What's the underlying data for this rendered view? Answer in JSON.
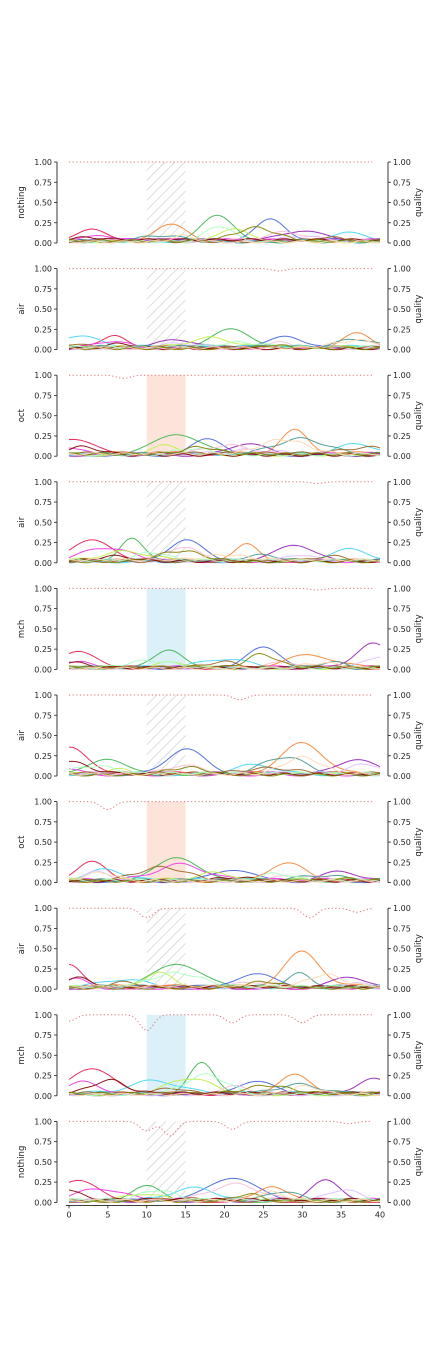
{
  "chart_data": {
    "type": "line",
    "description_kind": "stacked small-multiple line plots with shaded stimulus window and dotted quality trace",
    "x": {
      "ticks": [
        0,
        5,
        10,
        15,
        20,
        25,
        30,
        35,
        40
      ],
      "lim": [
        0,
        40
      ]
    },
    "y": {
      "ticks": [
        "0.00",
        "0.25",
        "0.50",
        "0.75",
        "1.00"
      ],
      "lim": [
        0,
        1
      ]
    },
    "right_axis": {
      "label": "quality",
      "ticks": [
        "0.00",
        "0.25",
        "0.50",
        "0.75",
        "1.00"
      ]
    },
    "stimulus_window": [
      10,
      15
    ],
    "window_styles": {
      "hatched": {
        "fill": "none",
        "hatch": "#c8c8c8"
      },
      "oct": {
        "fill": "#fde4da"
      },
      "mch": {
        "fill": "#dcf0fa"
      }
    },
    "quality_color": "#e07070",
    "series_colors": [
      "#e6194b",
      "#3cb44b",
      "#4363d8",
      "#f58231",
      "#911eb4",
      "#42d4f4",
      "#f032e6",
      "#bfef45",
      "#fabed4",
      "#469990",
      "#dcbeff",
      "#9a6324",
      "#800000",
      "#aaffc3",
      "#808000",
      "#ffd8b1",
      "#000075",
      "#e6c229",
      "#ff4d4d",
      "#2e8b57"
    ],
    "panels": [
      {
        "label": "nothing",
        "window": "hatched",
        "quality_dips": [],
        "peaks": [
          [
            3,
            0.12
          ],
          [
            19,
            0.3
          ],
          [
            26,
            0.25
          ],
          [
            13,
            0.2
          ],
          [
            30,
            0.12
          ],
          [
            36,
            0.1
          ]
        ]
      },
      {
        "label": "air",
        "window": "hatched",
        "quality_dips": [
          [
            27,
            0.03
          ]
        ],
        "peaks": [
          [
            6,
            0.15
          ],
          [
            21,
            0.22
          ],
          [
            28,
            0.15
          ],
          [
            37,
            0.18
          ],
          [
            14,
            0.1
          ],
          [
            1,
            0.13
          ]
        ]
      },
      {
        "label": "oct",
        "window": "oct",
        "quality_dips": [
          [
            7,
            0.04
          ]
        ],
        "peaks": [
          [
            0,
            0.18
          ],
          [
            14,
            0.25
          ],
          [
            18,
            0.2
          ],
          [
            29,
            0.28
          ],
          [
            23,
            0.15
          ],
          [
            37,
            0.12
          ]
        ]
      },
      {
        "label": "air",
        "window": "hatched",
        "quality_dips": [
          [
            32,
            0.02
          ]
        ],
        "peaks": [
          [
            3,
            0.25
          ],
          [
            8,
            0.28
          ],
          [
            15,
            0.25
          ],
          [
            23,
            0.2
          ],
          [
            29,
            0.2
          ],
          [
            36,
            0.15
          ]
        ]
      },
      {
        "label": "mch",
        "window": "mch",
        "quality_dips": [
          [
            32,
            0.02
          ]
        ],
        "peaks": [
          [
            1,
            0.2
          ],
          [
            13,
            0.22
          ],
          [
            25,
            0.25
          ],
          [
            31,
            0.15
          ],
          [
            39,
            0.3
          ],
          [
            20,
            0.1
          ]
        ]
      },
      {
        "label": "air",
        "window": "hatched",
        "quality_dips": [
          [
            22,
            0.06
          ]
        ],
        "peaks": [
          [
            0,
            0.32
          ],
          [
            5,
            0.2
          ],
          [
            15,
            0.3
          ],
          [
            30,
            0.38
          ],
          [
            37,
            0.18
          ],
          [
            24,
            0.12
          ]
        ]
      },
      {
        "label": "oct",
        "window": "oct",
        "quality_dips": [
          [
            5,
            0.1
          ]
        ],
        "peaks": [
          [
            3,
            0.22
          ],
          [
            14,
            0.3
          ],
          [
            21,
            0.15
          ],
          [
            28,
            0.22
          ],
          [
            35,
            0.12
          ]
        ]
      },
      {
        "label": "air",
        "window": "hatched",
        "quality_dips": [
          [
            10,
            0.12
          ],
          [
            31,
            0.12
          ],
          [
            37,
            0.05
          ]
        ],
        "peaks": [
          [
            0,
            0.28
          ],
          [
            14,
            0.3
          ],
          [
            24,
            0.15
          ],
          [
            30,
            0.42
          ],
          [
            36,
            0.15
          ],
          [
            7,
            0.1
          ]
        ]
      },
      {
        "label": "mch",
        "window": "mch",
        "quality_dips": [
          [
            10,
            0.2
          ],
          [
            21,
            0.1
          ],
          [
            30,
            0.1
          ],
          [
            0,
            0.08
          ]
        ],
        "peaks": [
          [
            3,
            0.3
          ],
          [
            17,
            0.4
          ],
          [
            24,
            0.15
          ],
          [
            29,
            0.22
          ],
          [
            39,
            0.18
          ],
          [
            11,
            0.15
          ]
        ]
      },
      {
        "label": "nothing",
        "window": "hatched",
        "quality_dips": [
          [
            10,
            0.12
          ],
          [
            13,
            0.18
          ],
          [
            21,
            0.1
          ],
          [
            36,
            0.03
          ]
        ],
        "peaks": [
          [
            1,
            0.25
          ],
          [
            10,
            0.18
          ],
          [
            21,
            0.28
          ],
          [
            26,
            0.18
          ],
          [
            33,
            0.25
          ],
          [
            16,
            0.15
          ]
        ]
      }
    ]
  }
}
